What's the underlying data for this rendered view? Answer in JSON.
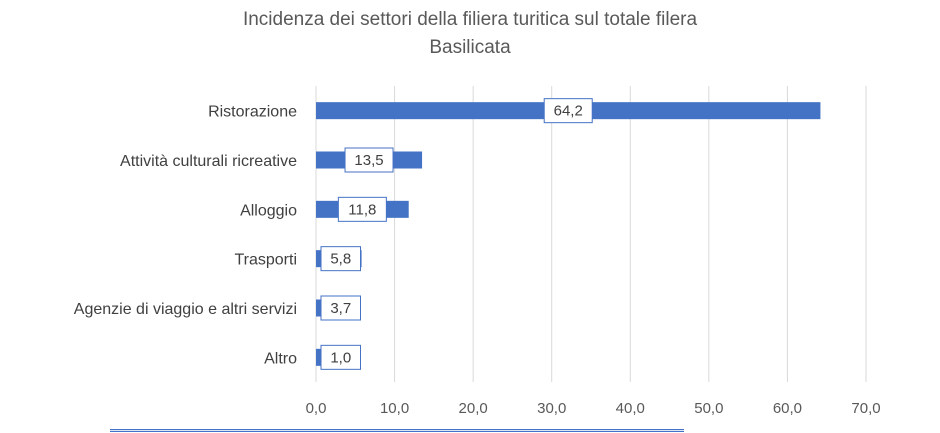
{
  "chart_data": {
    "type": "bar",
    "orientation": "horizontal",
    "title": "Incidenza dei settori della filiera turitica sul totale filera",
    "subtitle": "Basilicata",
    "categories": [
      "Ristorazione",
      "Attività culturali ricreative",
      "Alloggio",
      "Trasporti",
      "Agenzie di viaggio e altri servizi",
      "Altro"
    ],
    "values": [
      64.2,
      13.5,
      11.8,
      5.8,
      3.7,
      1.0
    ],
    "value_labels": [
      "64,2",
      "13,5",
      "11,8",
      "5,8",
      "3,7",
      "1,0"
    ],
    "xlim": [
      0,
      70
    ],
    "ticks": [
      0,
      10,
      20,
      30,
      40,
      50,
      60,
      70
    ],
    "tick_labels": [
      "0,0",
      "10,0",
      "20,0",
      "30,0",
      "40,0",
      "50,0",
      "60,0",
      "70,0"
    ],
    "grid": "vertical",
    "legend": "none",
    "bar_color": "#4472c4",
    "grid_color": "#d9d9d9"
  }
}
